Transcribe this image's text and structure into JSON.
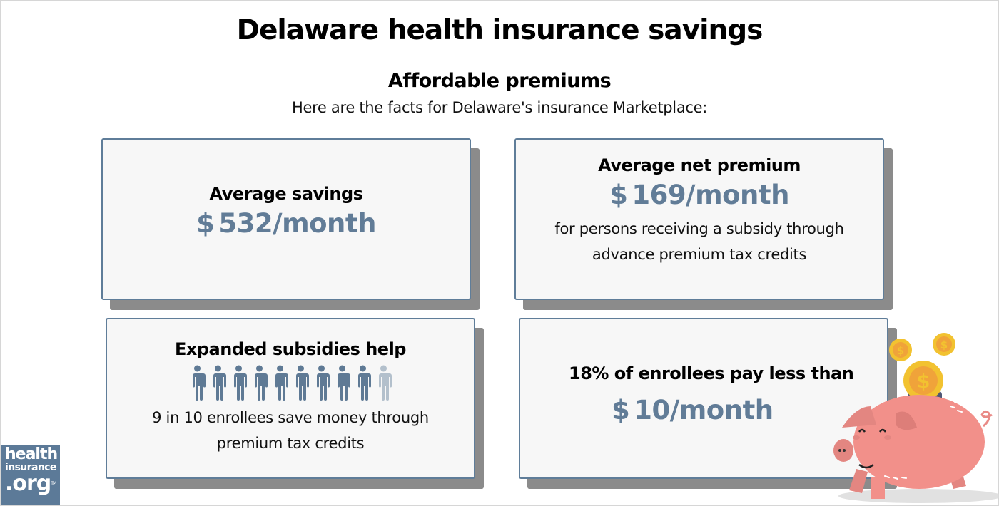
{
  "header": {
    "title": "Delaware health insurance savings",
    "subtitle": "Affordable premiums",
    "intro": "Here are the facts for Delaware's insurance Marketplace:"
  },
  "cards": [
    {
      "heading": "Average savings",
      "currency": "$",
      "value": "532/month"
    },
    {
      "heading": "Average net premium",
      "currency": "$",
      "value": "169/month",
      "note_line1": "for persons receiving a subsidy through",
      "note_line2": "advance premium tax credits"
    },
    {
      "heading": "Expanded subsidies help",
      "people_icons": {
        "total": 10,
        "highlighted": 9,
        "highlight_color": "#5f7a95",
        "dim_color": "#b3c0cc"
      },
      "note_line1": "9 in 10 enrollees save money through",
      "note_line2": "premium tax credits"
    },
    {
      "heading": "18% of enrollees pay less than",
      "currency": "$",
      "value": "10/month"
    }
  ],
  "logo": {
    "line1": "health",
    "line2": "insurance",
    "line3": ".org",
    "trademark": "TM"
  },
  "illustration": "piggy-bank-with-coins",
  "colors": {
    "accent": "#617c97",
    "card_border": "#5f7d99",
    "card_bg": "#f7f7f7",
    "shadow": "#8b8b8b",
    "pig": "#f2908a",
    "coin": "#f2c230"
  }
}
